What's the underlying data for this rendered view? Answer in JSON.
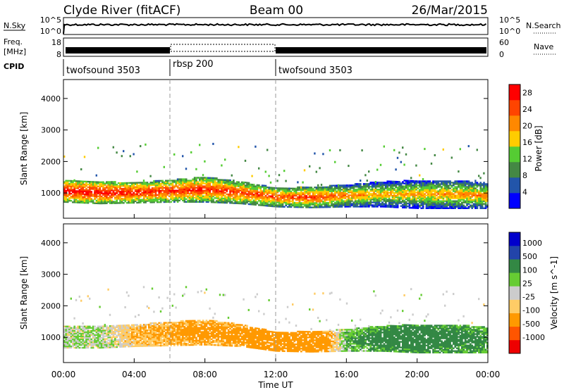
{
  "header": {
    "station": "Clyde River (fitACF)",
    "beam": "Beam 00",
    "date": "26/Mar/2015"
  },
  "top_panels": {
    "nsky_label": "N.Sky",
    "nsearch_label": "N.Search",
    "nsky_ticks": [
      "10^5",
      "10^0"
    ],
    "nsearch_ticks": [
      "10^5",
      "10^0"
    ],
    "freq_label_1": "Freq.",
    "freq_label_2": "[MHz]",
    "freq_ticks": [
      "18",
      "8"
    ],
    "nave_label": "Nave",
    "nave_ticks": [
      "60",
      "0"
    ],
    "cpid_label": "CPID",
    "cpid_segments": [
      {
        "name": "twofsound 3503",
        "start_hour": 0,
        "end_hour": 6
      },
      {
        "name": "rbsp 200",
        "start_hour": 6,
        "end_hour": 12
      },
      {
        "name": "twofsound 3503",
        "start_hour": 12,
        "end_hour": 24
      }
    ]
  },
  "colors": {
    "power": [
      "#0000ff",
      "#2255aa",
      "#448844",
      "#55cc33",
      "#ffcc00",
      "#ff8800",
      "#ff4400",
      "#ff0000"
    ],
    "velocity": [
      "#ee0000",
      "#ff5500",
      "#ff9900",
      "#ffcc66",
      "#cccccc",
      "#66cc33",
      "#338844",
      "#2244aa",
      "#0000cc"
    ]
  },
  "chart_data": [
    {
      "type": "heatmap",
      "panel": "power",
      "ylabel": "Slant Range [km]",
      "ylim": [
        200,
        4600
      ],
      "yticks": [
        "1000",
        "2000",
        "3000",
        "4000"
      ],
      "colorbar_label": "Power [dB]",
      "colorbar_ticks": [
        "4",
        "8",
        "12",
        "16",
        "20",
        "24",
        "28"
      ],
      "colorbar_range": [
        0,
        30
      ],
      "band": {
        "hours": [
          0,
          2,
          4,
          6,
          8,
          10,
          12,
          14,
          16,
          18,
          20,
          22,
          24
        ],
        "center_km": [
          1050,
          1000,
          1000,
          1050,
          1100,
          1000,
          850,
          850,
          900,
          950,
          950,
          950,
          900
        ],
        "width_km": [
          700,
          700,
          650,
          700,
          800,
          700,
          600,
          650,
          700,
          800,
          900,
          900,
          800
        ],
        "core_power_db": [
          29,
          29,
          28,
          27,
          27,
          26,
          25,
          26,
          22,
          20,
          20,
          21,
          22
        ]
      }
    },
    {
      "type": "heatmap",
      "panel": "velocity",
      "xlabel": "Time UT",
      "ylabel": "Slant Range [km]",
      "ylim": [
        200,
        4600
      ],
      "yticks": [
        "1000",
        "2000",
        "3000",
        "4000"
      ],
      "xticks": [
        "00:00",
        "04:00",
        "08:00",
        "12:00",
        "16:00",
        "20:00",
        "00:00"
      ],
      "colorbar_label": "Velocity [m s^-1]",
      "colorbar_ticks": [
        "1000",
        "500",
        "100",
        "25",
        "-25",
        "-100",
        "-500",
        "-1000"
      ],
      "band": {
        "hours": [
          0,
          2,
          4,
          6,
          8,
          10,
          12,
          14,
          16,
          18,
          20,
          22,
          24
        ],
        "center_km": [
          1000,
          1000,
          1050,
          1100,
          1150,
          1050,
          850,
          850,
          900,
          950,
          950,
          950,
          900
        ],
        "width_km": [
          700,
          700,
          700,
          750,
          800,
          700,
          600,
          650,
          700,
          800,
          900,
          900,
          800
        ],
        "velocity_ms": [
          25,
          30,
          -100,
          -150,
          -200,
          -200,
          -500,
          -400,
          100,
          200,
          250,
          200,
          150
        ]
      }
    }
  ],
  "time_axis": {
    "start_hour": 0,
    "end_hour": 24,
    "xticks": [
      "00:00",
      "04:00",
      "08:00",
      "12:00",
      "16:00",
      "20:00",
      "00:00"
    ],
    "xlabel": "Time UT"
  }
}
